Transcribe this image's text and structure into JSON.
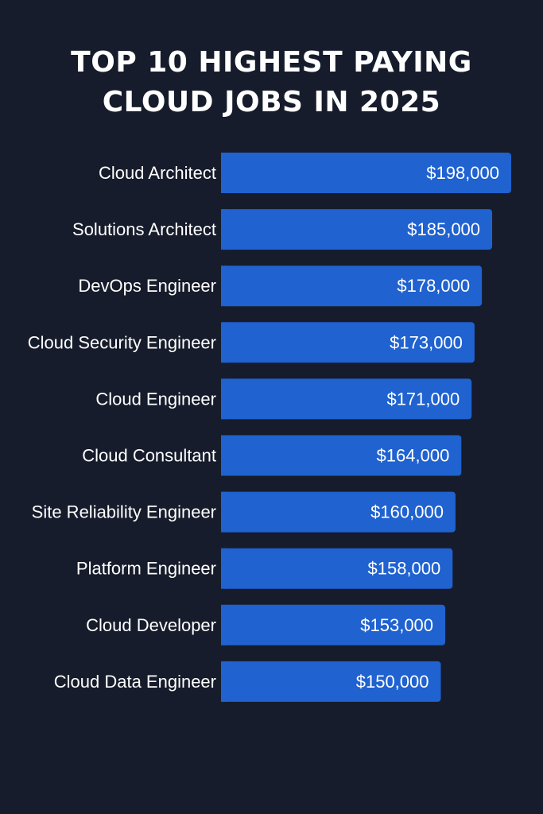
{
  "chart_data": {
    "type": "bar",
    "orientation": "horizontal",
    "title_lines": [
      "TOP 10 HIGHEST PAYING",
      "CLOUD JOBS IN 2025"
    ],
    "categories": [
      "Cloud Architect",
      "Solutions Architect",
      "DevOps Engineer",
      "Cloud Security Engineer",
      "Cloud Engineer",
      "Cloud Consultant",
      "Site Reliability Engineer",
      "Platform Engineer",
      "Cloud Developer",
      "Cloud Data Engineer"
    ],
    "values": [
      198000,
      185000,
      178000,
      173000,
      171000,
      164000,
      160000,
      158000,
      153000,
      150000
    ],
    "value_labels": [
      "$198,000",
      "$185,000",
      "$178,000",
      "$173,000",
      "$171,000",
      "$164,000",
      "$160,000",
      "$158,000",
      "$153,000",
      "$150,000"
    ],
    "grid": false,
    "colors": {
      "background": "#161c2b",
      "bar": "#1f62d0",
      "text": "#ffffff"
    }
  }
}
